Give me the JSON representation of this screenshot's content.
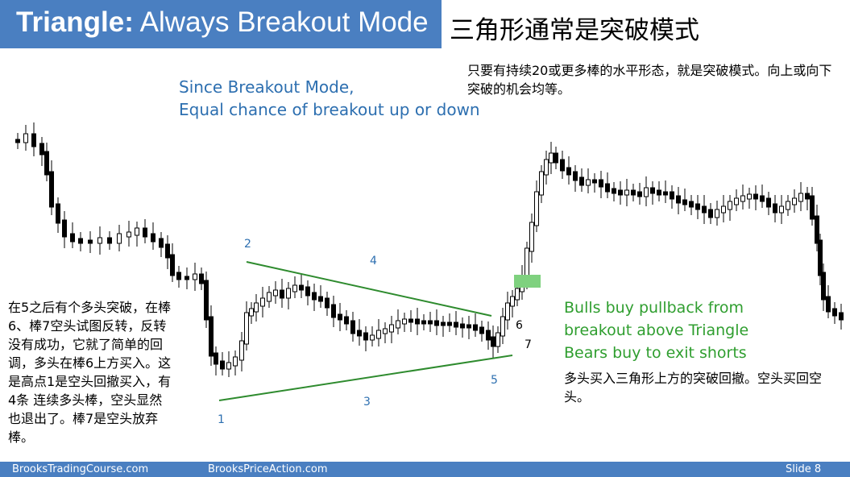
{
  "slide": {
    "title_bold": "Triangle:",
    "title_rest": " Always Breakout Mode",
    "title_cn": "三角形通常是突破模式"
  },
  "annotations": {
    "note_top_right": "只要有持续20或更多棒的水平形态，就是突破模式。向上或向下突破的机会均等。",
    "blue_line1": "Since Breakout Mode,",
    "blue_line2": "Equal chance of breakout up or down",
    "note_left": "在5之后有个多头突破，在棒6、棒7空头试图反转，反转没有成功，它就了简单的回调，多头在棒6上方买入。这是高点1是空头回撤买入，有4条 连续多头棒，空头显然也退出了。棒7是空头放弃棒。",
    "green_line1": "Bulls buy pullback from",
    "green_line2": "breakout above Triangle",
    "green_line3": "Bears buy to exit shorts",
    "note_bottom_right": "多头买入三角形上方的突破回撤。空头买回空头。"
  },
  "labels": {
    "l1": "1",
    "l2": "2",
    "l3": "3",
    "l4": "4",
    "l5": "5",
    "l6": "6",
    "l7": "7"
  },
  "footer": {
    "left": "BrooksTradingCourse.com",
    "center": "BrooksPriceAction.com",
    "right": "Slide  8"
  },
  "colors": {
    "header_blue": "#4a7fc1",
    "trendline_green": "#2e8b2e",
    "highlight_green": "#7fd17f",
    "annotation_blue": "#2d6fb0",
    "annotation_green": "#2f9e2f"
  }
}
